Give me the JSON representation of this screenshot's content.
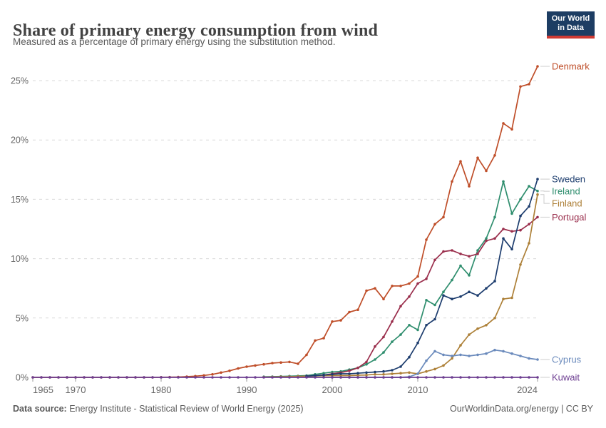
{
  "header": {
    "title": "Share of primary energy consumption from wind",
    "subtitle": "Measured as a percentage of primary energy using the substitution method.",
    "logo": {
      "line1": "Our World",
      "line2": "in Data"
    }
  },
  "footer": {
    "source_label": "Data source:",
    "source_text": " Energy Institute - Statistical Review of World Energy (2025)",
    "credit": "OurWorldinData.org/energy | CC BY"
  },
  "colors": {
    "axis_text": "#666666",
    "grid": "#d9d9d9",
    "tick": "#999999",
    "leader": "#cccccc",
    "logo_bg": "#1d3d63",
    "logo_accent": "#cf3a33"
  },
  "chart_data": {
    "type": "line",
    "title": "Share of primary energy consumption from wind",
    "subtitle": "Measured as a percentage of primary energy using the substitution method.",
    "xlabel": "",
    "ylabel": "",
    "xlim": [
      1965,
      2024
    ],
    "ylim": [
      0,
      26.5
    ],
    "grid": "horizontal-dashed",
    "legend_position": "labels-right-of-lines",
    "x_ticks": [
      1965,
      1970,
      1980,
      1990,
      2000,
      2010,
      2024
    ],
    "y_ticks": [
      0,
      5,
      10,
      15,
      20,
      25
    ],
    "y_tick_suffix": "%",
    "series": [
      {
        "name": "Denmark",
        "color": "#bf4e29",
        "start_year": 1965,
        "values": [
          0,
          0,
          0,
          0,
          0,
          0,
          0,
          0,
          0,
          0,
          0,
          0,
          0,
          0,
          0,
          0.01,
          0.02,
          0.03,
          0.06,
          0.1,
          0.16,
          0.25,
          0.4,
          0.55,
          0.75,
          0.9,
          1.0,
          1.1,
          1.2,
          1.25,
          1.3,
          1.15,
          1.9,
          3.1,
          3.3,
          4.7,
          4.8,
          5.5,
          5.7,
          7.3,
          7.5,
          6.6,
          7.7,
          7.7,
          7.9,
          8.5,
          11.6,
          12.9,
          13.5,
          16.5,
          18.2,
          16.1,
          18.5,
          17.4,
          18.7,
          21.4,
          20.9,
          24.5,
          24.7,
          26.2
        ]
      },
      {
        "name": "Ireland",
        "color": "#2f8e6e",
        "start_year": 1992,
        "values": [
          0.05,
          0.06,
          0.08,
          0.1,
          0.12,
          0.15,
          0.25,
          0.35,
          0.45,
          0.5,
          0.65,
          0.8,
          1.1,
          1.5,
          2.1,
          3.0,
          3.6,
          4.4,
          4.0,
          6.5,
          6.1,
          7.2,
          8.2,
          9.4,
          8.6,
          10.7,
          11.7,
          13.5,
          16.5,
          13.8,
          15.0,
          16.1,
          15.7
        ]
      },
      {
        "name": "Portugal",
        "color": "#9a2e4c",
        "start_year": 1993,
        "values": [
          0.02,
          0.03,
          0.04,
          0.05,
          0.1,
          0.15,
          0.2,
          0.3,
          0.4,
          0.55,
          0.8,
          1.3,
          2.6,
          3.4,
          4.7,
          6.0,
          6.8,
          7.9,
          8.3,
          9.9,
          10.6,
          10.7,
          10.4,
          10.2,
          10.4,
          11.5,
          11.7,
          12.5,
          12.3,
          12.4,
          12.9,
          13.5
        ]
      },
      {
        "name": "Finland",
        "color": "#ad8038",
        "start_year": 1992,
        "values": [
          0.02,
          0.03,
          0.05,
          0.06,
          0.08,
          0.1,
          0.12,
          0.15,
          0.15,
          0.15,
          0.15,
          0.18,
          0.2,
          0.25,
          0.25,
          0.3,
          0.35,
          0.4,
          0.3,
          0.5,
          0.7,
          1.0,
          1.6,
          2.7,
          3.6,
          4.1,
          4.4,
          5.0,
          6.6,
          6.7,
          9.5,
          11.3,
          15.4
        ]
      },
      {
        "name": "Sweden",
        "color": "#1d3d6e",
        "start_year": 1997,
        "values": [
          0.1,
          0.15,
          0.2,
          0.25,
          0.3,
          0.3,
          0.35,
          0.4,
          0.45,
          0.5,
          0.6,
          0.9,
          1.7,
          2.9,
          4.4,
          4.9,
          6.9,
          6.6,
          6.8,
          7.2,
          6.9,
          7.5,
          8.1,
          11.7,
          10.8,
          13.6,
          14.4,
          16.7
        ]
      },
      {
        "name": "Cyprus",
        "color": "#6a8abc",
        "start_year": 2000,
        "values": [
          0,
          0,
          0,
          0,
          0,
          0,
          0,
          0,
          0,
          0.05,
          0.3,
          1.4,
          2.2,
          1.9,
          1.8,
          1.9,
          1.8,
          1.9,
          2.0,
          2.3,
          2.2,
          2.0,
          1.8,
          1.6,
          1.5
        ]
      },
      {
        "name": "Kuwait",
        "color": "#6d3e91",
        "start_year": 1965,
        "values": [
          0,
          0,
          0,
          0,
          0,
          0,
          0,
          0,
          0,
          0,
          0,
          0,
          0,
          0,
          0,
          0,
          0,
          0,
          0,
          0,
          0,
          0,
          0,
          0,
          0,
          0,
          0,
          0,
          0,
          0,
          0,
          0,
          0,
          0,
          0,
          0,
          0,
          0,
          0,
          0,
          0,
          0,
          0,
          0,
          0,
          0,
          0,
          0,
          0,
          0,
          0,
          0,
          0,
          0,
          0,
          0,
          0,
          0,
          0,
          0
        ]
      }
    ]
  }
}
